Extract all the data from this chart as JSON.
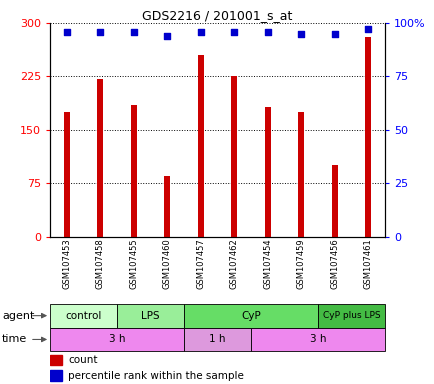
{
  "title": "GDS2216 / 201001_s_at",
  "samples": [
    "GSM107453",
    "GSM107458",
    "GSM107455",
    "GSM107460",
    "GSM107457",
    "GSM107462",
    "GSM107454",
    "GSM107459",
    "GSM107456",
    "GSM107461"
  ],
  "counts": [
    175,
    222,
    185,
    85,
    255,
    225,
    182,
    175,
    100,
    280
  ],
  "percentiles": [
    96,
    96,
    96,
    94,
    96,
    96,
    96,
    95,
    95,
    97
  ],
  "ylim_left": [
    0,
    300
  ],
  "ylim_right": [
    0,
    100
  ],
  "yticks_left": [
    0,
    75,
    150,
    225,
    300
  ],
  "yticks_right": [
    0,
    25,
    50,
    75,
    100
  ],
  "ytick_labels_right": [
    "0",
    "25",
    "50",
    "75",
    "100%"
  ],
  "bar_color": "#cc0000",
  "dot_color": "#0000cc",
  "agent_groups": [
    {
      "label": "control",
      "start": 0,
      "end": 2,
      "color": "#ccffcc"
    },
    {
      "label": "LPS",
      "start": 2,
      "end": 4,
      "color": "#99ee99"
    },
    {
      "label": "CyP",
      "start": 4,
      "end": 8,
      "color": "#66dd66"
    },
    {
      "label": "CyP plus LPS",
      "start": 8,
      "end": 10,
      "color": "#44bb44"
    }
  ],
  "time_groups": [
    {
      "label": "3 h",
      "start": 0,
      "end": 4,
      "color": "#ee88ee"
    },
    {
      "label": "1 h",
      "start": 4,
      "end": 6,
      "color": "#dd99dd"
    },
    {
      "label": "3 h",
      "start": 6,
      "end": 10,
      "color": "#ee88ee"
    }
  ],
  "agent_label": "agent",
  "time_label": "time",
  "legend_count_label": "count",
  "legend_pct_label": "percentile rank within the sample",
  "bar_width": 0.18
}
